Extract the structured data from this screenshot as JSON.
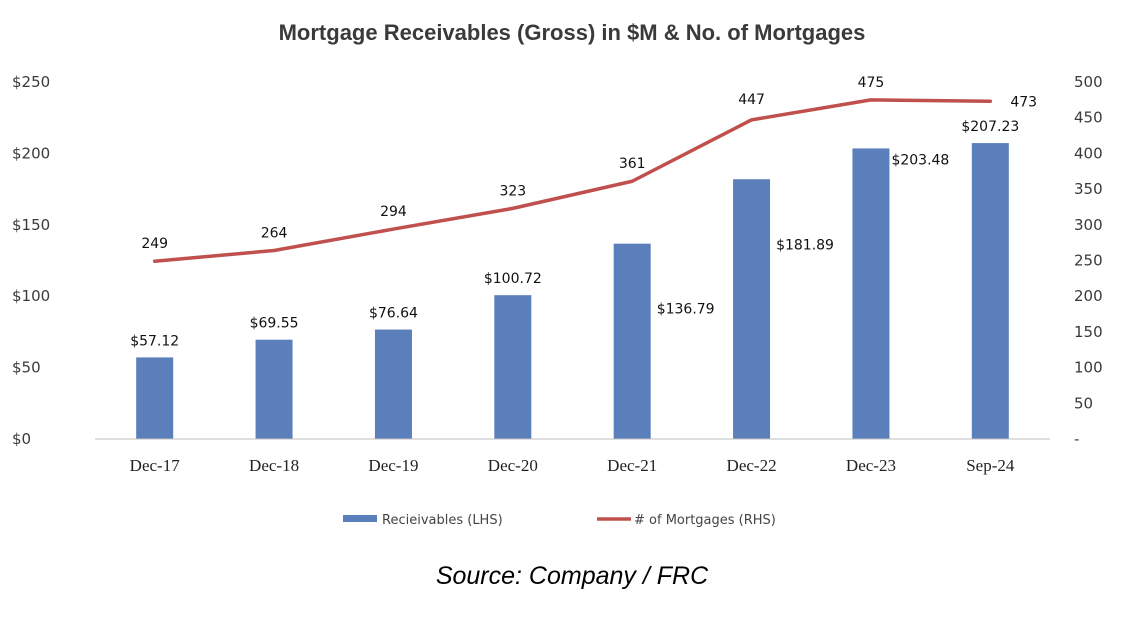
{
  "chart_data": {
    "type": "bar+line",
    "title": "Mortgage Receivables (Gross) in $M & No. of Mortgages",
    "categories": [
      "Dec-17",
      "Dec-18",
      "Dec-19",
      "Dec-20",
      "Dec-21",
      "Dec-22",
      "Dec-23",
      "Sep-24"
    ],
    "series": [
      {
        "name": "Recieivables (LHS)",
        "type": "bar",
        "axis": "left",
        "color": "#5b7fbb",
        "values": [
          57.12,
          69.55,
          76.64,
          100.72,
          136.79,
          181.89,
          203.48,
          207.23
        ],
        "labels": [
          "$57.12",
          "$69.55",
          "$76.64",
          "$100.72",
          "$136.79",
          "$181.89",
          "$203.48",
          "$207.23"
        ]
      },
      {
        "name": "# of Mortgages (RHS)",
        "type": "line",
        "axis": "right",
        "color": "#c0504d",
        "values": [
          249,
          264,
          294,
          323,
          361,
          447,
          475,
          473
        ],
        "labels": [
          "249",
          "264",
          "294",
          "323",
          "361",
          "447",
          "475",
          "473"
        ]
      }
    ],
    "y_left": {
      "ylim": [
        0,
        250
      ],
      "ticks": [
        0,
        50,
        100,
        150,
        200,
        250
      ],
      "tick_labels": [
        "$0",
        "$50",
        "$100",
        "$150",
        "$200",
        "$250"
      ]
    },
    "y_right": {
      "ylim": [
        0,
        500
      ],
      "ticks": [
        0,
        50,
        100,
        150,
        200,
        250,
        300,
        350,
        400,
        450,
        500
      ],
      "tick_labels": [
        "-",
        "50",
        "100",
        "150",
        "200",
        "250",
        "300",
        "350",
        "400",
        "450",
        "500"
      ]
    },
    "grid": false,
    "legend_position": "bottom"
  },
  "source": "Source: Company / FRC"
}
